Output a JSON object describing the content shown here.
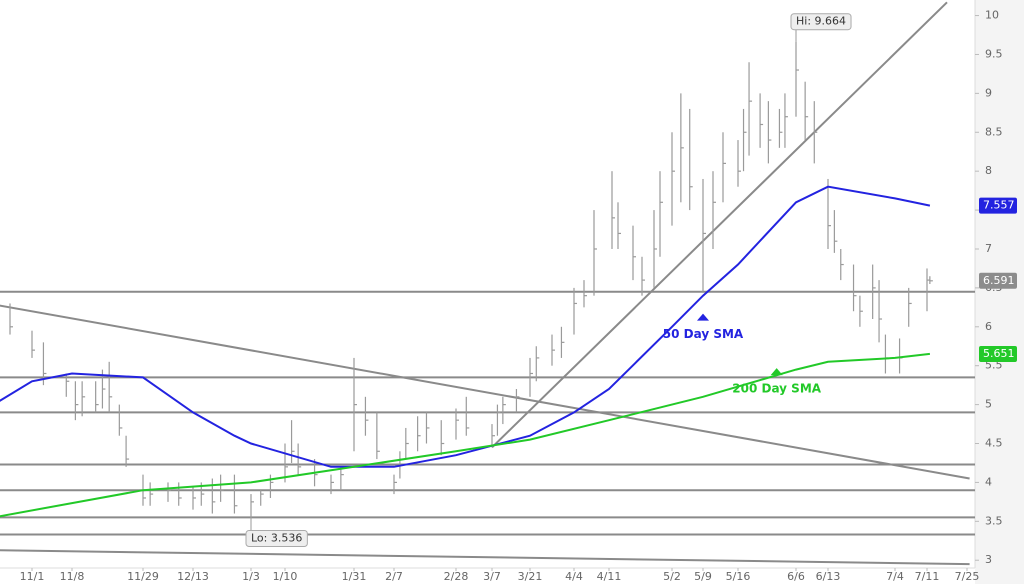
{
  "chart_data": {
    "type": "ohlc",
    "ylim": [
      2.9,
      10.2
    ],
    "yticks": [
      3,
      3.5,
      4,
      4.5,
      5,
      5.5,
      6,
      6.5,
      7,
      7.5,
      8,
      8.5,
      9,
      9.5,
      10
    ],
    "xticks": [
      "11/1",
      "11/8",
      "11/29",
      "12/13",
      "1/3",
      "1/10",
      "1/31",
      "2/7",
      "2/28",
      "3/7",
      "3/21",
      "4/4",
      "4/11",
      "5/2",
      "5/9",
      "5/16",
      "6/6",
      "6/13",
      "7/4",
      "7/11",
      "7/25"
    ],
    "x": [
      "10/25",
      "10/28",
      "11/1",
      "11/3",
      "11/7",
      "11/9",
      "11/11",
      "11/15",
      "11/17",
      "11/19",
      "11/22",
      "11/24",
      "11/29",
      "12/1",
      "12/6",
      "12/9",
      "12/13",
      "12/16",
      "12/20",
      "12/23",
      "12/28",
      "1/3",
      "1/5",
      "1/7",
      "1/10",
      "1/12",
      "1/14",
      "1/19",
      "1/24",
      "1/27",
      "1/31",
      "2/2",
      "2/4",
      "2/7",
      "2/9",
      "2/11",
      "2/15",
      "2/18",
      "2/23",
      "2/28",
      "3/2",
      "3/7",
      "3/9",
      "3/11",
      "3/16",
      "3/21",
      "3/23",
      "3/28",
      "3/31",
      "4/4",
      "4/6",
      "4/8",
      "4/12",
      "4/14",
      "4/19",
      "4/22",
      "4/26",
      "4/28",
      "5/2",
      "5/4",
      "5/6",
      "5/9",
      "5/11",
      "5/13",
      "5/16",
      "5/18",
      "5/20",
      "5/24",
      "5/27",
      "5/31",
      "6/2",
      "6/6",
      "6/8",
      "6/10",
      "6/13",
      "6/15",
      "6/17",
      "6/21",
      "6/23",
      "6/27",
      "6/29",
      "7/1",
      "7/5",
      "7/7",
      "7/11",
      "7/12"
    ],
    "high": [
      6.35,
      6.3,
      5.95,
      5.8,
      5.4,
      5.3,
      5.3,
      5.3,
      5.45,
      5.55,
      5.0,
      4.6,
      4.1,
      4.0,
      4.0,
      4.0,
      3.95,
      4.0,
      4.05,
      4.1,
      4.1,
      3.85,
      3.9,
      4.1,
      4.5,
      4.8,
      4.5,
      4.3,
      4.1,
      4.2,
      5.6,
      5.1,
      4.9,
      4.1,
      4.4,
      4.7,
      4.85,
      4.9,
      4.8,
      4.95,
      5.1,
      4.75,
      5.0,
      5.1,
      5.2,
      5.6,
      5.75,
      5.9,
      6.0,
      6.5,
      6.6,
      7.5,
      8.0,
      7.6,
      7.3,
      6.9,
      7.5,
      8.0,
      8.5,
      9.0,
      8.8,
      7.9,
      8.0,
      8.5,
      8.4,
      8.8,
      9.4,
      9.0,
      8.9,
      8.8,
      9.0,
      9.664,
      9.15,
      8.9,
      7.9,
      7.5,
      7.0,
      6.8,
      6.4,
      6.8,
      6.6,
      5.9,
      5.85,
      6.5,
      6.75,
      6.65
    ],
    "low": [
      5.95,
      5.9,
      5.6,
      5.25,
      5.1,
      4.8,
      4.85,
      4.9,
      4.95,
      4.9,
      4.6,
      4.2,
      3.7,
      3.7,
      3.75,
      3.7,
      3.65,
      3.7,
      3.6,
      3.75,
      3.6,
      3.536,
      3.7,
      3.8,
      4.0,
      4.25,
      4.1,
      3.95,
      3.85,
      3.9,
      4.4,
      4.6,
      4.3,
      3.85,
      4.05,
      4.3,
      4.4,
      4.5,
      4.35,
      4.55,
      4.6,
      4.45,
      4.6,
      4.75,
      4.9,
      5.1,
      5.3,
      5.5,
      5.6,
      5.9,
      6.25,
      6.4,
      7.0,
      7.0,
      6.6,
      6.4,
      6.5,
      6.9,
      7.3,
      7.6,
      7.5,
      6.45,
      7.0,
      7.6,
      7.8,
      8.0,
      8.2,
      8.3,
      8.1,
      8.3,
      8.3,
      8.7,
      8.4,
      8.1,
      7.0,
      6.95,
      6.6,
      6.2,
      6.0,
      6.1,
      5.8,
      5.4,
      5.4,
      6.0,
      6.2,
      6.55
    ],
    "close": [
      6.1,
      6.0,
      5.7,
      5.4,
      5.3,
      5.0,
      5.1,
      5.0,
      5.2,
      5.1,
      4.7,
      4.3,
      3.8,
      3.85,
      3.9,
      3.8,
      3.8,
      3.85,
      3.75,
      3.9,
      3.7,
      3.75,
      3.85,
      4.0,
      4.2,
      4.4,
      4.2,
      4.1,
      4.0,
      4.1,
      5.0,
      4.8,
      4.4,
      4.0,
      4.3,
      4.5,
      4.6,
      4.7,
      4.5,
      4.8,
      4.7,
      4.6,
      4.9,
      5.0,
      5.1,
      5.4,
      5.6,
      5.7,
      5.8,
      6.3,
      6.4,
      7.0,
      7.4,
      7.2,
      6.9,
      6.6,
      7.0,
      7.6,
      8.0,
      8.3,
      7.8,
      7.2,
      7.6,
      8.1,
      8.0,
      8.5,
      8.9,
      8.6,
      8.4,
      8.5,
      8.7,
      9.3,
      8.7,
      8.5,
      7.3,
      7.1,
      6.8,
      6.4,
      6.2,
      6.5,
      6.1,
      5.6,
      5.6,
      6.3,
      6.6,
      6.591
    ],
    "bar_color": "#9a9a9a",
    "series": [
      {
        "name": "50 Day SMA",
        "color": "#2323e0",
        "label_at": [
          "5/9",
          5.95
        ],
        "x": [
          "10/25",
          "11/1",
          "11/8",
          "11/29",
          "12/13",
          "12/28",
          "1/3",
          "1/24",
          "2/7",
          "2/28",
          "3/21",
          "4/4",
          "4/11",
          "5/2",
          "5/9",
          "5/16",
          "6/6",
          "6/13",
          "7/4",
          "7/12"
        ],
        "values": [
          5.0,
          5.3,
          5.4,
          5.35,
          4.9,
          4.6,
          4.5,
          4.2,
          4.2,
          4.35,
          4.6,
          4.9,
          5.2,
          6.0,
          6.4,
          6.8,
          7.6,
          7.8,
          7.65,
          7.557
        ]
      },
      {
        "name": "200 Day SMA",
        "color": "#22c928",
        "label_at": [
          "5/30",
          5.25
        ],
        "x": [
          "10/25",
          "11/29",
          "1/3",
          "1/31",
          "2/28",
          "3/21",
          "4/11",
          "5/9",
          "6/6",
          "6/13",
          "7/4",
          "7/12"
        ],
        "values": [
          3.55,
          3.9,
          4.0,
          4.2,
          4.4,
          4.55,
          4.8,
          5.1,
          5.45,
          5.55,
          5.6,
          5.651
        ]
      }
    ],
    "levels": [
      6.45,
      5.35,
      4.9,
      4.23,
      3.9,
      3.55,
      3.33
    ],
    "level_color": "#8a8a8a",
    "trendlines": [
      {
        "x": [
          "10/24",
          "7/26"
        ],
        "y": [
          6.3,
          4.05
        ]
      },
      {
        "x": [
          "3/7",
          "7/18"
        ],
        "y": [
          4.45,
          10.17
        ]
      },
      {
        "x": [
          "10/24",
          "7/26"
        ],
        "y": [
          3.13,
          2.95
        ]
      }
    ],
    "annotations": [
      {
        "text": "Hi: 9.664",
        "x": "6/6",
        "y": 9.664
      },
      {
        "text": "Lo: 3.536",
        "x": "1/3",
        "y": 3.536
      }
    ]
  }
}
